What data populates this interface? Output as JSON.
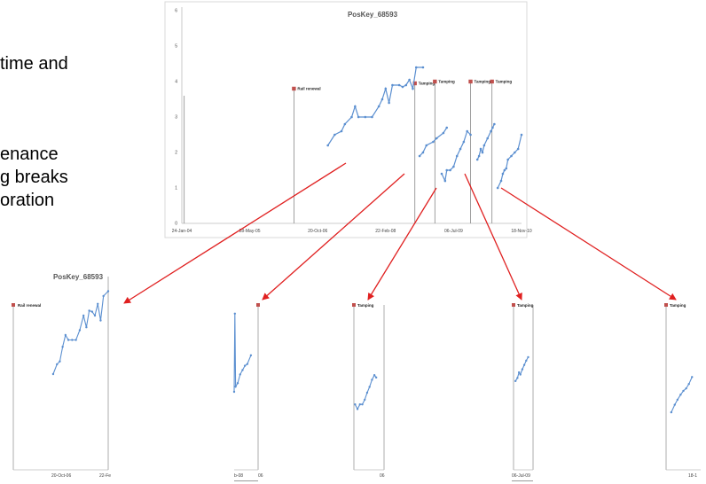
{
  "slide_text": [
    {
      "text": "time and",
      "x": 0,
      "y": 0
    },
    {
      "text": "enance"
    },
    {
      "text": "g breaks"
    },
    {
      "text": "oration"
    }
  ],
  "colors": {
    "series": "#5b8fd0",
    "marker": "#c0504d",
    "arrow": "#e02020",
    "event_line": "#888888"
  },
  "chart_data": [
    {
      "type": "line",
      "title": "PosKey_68593",
      "ylim": [
        0,
        6
      ],
      "y_ticks": [
        "0",
        "1",
        "2",
        "3",
        "4",
        "5",
        "6"
      ],
      "x_ticks": [
        "24-Jan-04",
        "28-May-05",
        "20-Oct-06",
        "22-Feb-08",
        "06-Jul-09",
        "18-Nov-10"
      ],
      "grid": false,
      "events": [
        {
          "label": "",
          "x": 0.007,
          "y": 3.6,
          "marker": false
        },
        {
          "label": "Rail renewal",
          "x": 0.33,
          "y": 3.8
        },
        {
          "label": "Tamping",
          "x": 0.686,
          "y": 3.95
        },
        {
          "label": "Tamping",
          "x": 0.745,
          "y": 4.0
        },
        {
          "label": "Tamping",
          "x": 0.85,
          "y": 4.0
        },
        {
          "label": "Tamping",
          "x": 0.913,
          "y": 4.0
        }
      ],
      "series": [
        {
          "values": [
            [
              0.43,
              2.2
            ],
            [
              0.45,
              2.5
            ],
            [
              0.47,
              2.6
            ],
            [
              0.48,
              2.8
            ],
            [
              0.5,
              3.0
            ],
            [
              0.51,
              3.3
            ],
            [
              0.52,
              3.0
            ],
            [
              0.54,
              3.0
            ],
            [
              0.56,
              3.0
            ],
            [
              0.58,
              3.3
            ],
            [
              0.59,
              3.5
            ],
            [
              0.6,
              3.8
            ],
            [
              0.61,
              3.4
            ],
            [
              0.62,
              3.9
            ],
            [
              0.64,
              3.9
            ],
            [
              0.65,
              3.85
            ],
            [
              0.66,
              3.9
            ],
            [
              0.67,
              4.05
            ],
            [
              0.68,
              3.8
            ],
            [
              0.69,
              4.4
            ],
            [
              0.71,
              4.4
            ]
          ]
        },
        {
          "values": [
            [
              0.7,
              1.9
            ],
            [
              0.71,
              2.0
            ],
            [
              0.72,
              2.2
            ],
            [
              0.74,
              2.3
            ],
            [
              0.75,
              2.4
            ],
            [
              0.77,
              2.55
            ],
            [
              0.78,
              2.7
            ]
          ]
        },
        {
          "values": [
            [
              0.765,
              1.4
            ],
            [
              0.775,
              1.2
            ],
            [
              0.78,
              1.5
            ],
            [
              0.79,
              1.5
            ],
            [
              0.8,
              1.6
            ],
            [
              0.81,
              1.9
            ],
            [
              0.82,
              2.1
            ],
            [
              0.83,
              2.3
            ],
            [
              0.84,
              2.6
            ],
            [
              0.85,
              2.5
            ]
          ]
        },
        {
          "values": [
            [
              0.87,
              1.8
            ],
            [
              0.875,
              1.9
            ],
            [
              0.88,
              2.1
            ],
            [
              0.885,
              2.0
            ],
            [
              0.89,
              2.2
            ],
            [
              0.9,
              2.4
            ],
            [
              0.91,
              2.6
            ],
            [
              0.915,
              2.7
            ],
            [
              0.92,
              2.8
            ]
          ]
        },
        {
          "values": [
            [
              0.93,
              1.0
            ],
            [
              0.94,
              1.2
            ],
            [
              0.945,
              1.4
            ],
            [
              0.95,
              1.5
            ],
            [
              0.955,
              1.55
            ],
            [
              0.96,
              1.8
            ],
            [
              0.97,
              1.9
            ],
            [
              0.98,
              2.0
            ],
            [
              0.99,
              2.1
            ],
            [
              1.0,
              2.5
            ]
          ]
        }
      ]
    },
    {
      "type": "line",
      "title": "PosKey_68593",
      "x_ticks": [
        "20-Oct-06",
        "22-Fe"
      ],
      "events": [
        {
          "label": "Rail renewal",
          "x": 0.0,
          "y": 0.0
        }
      ],
      "series": [
        {
          "values": [
            [
              0.42,
              0.0
            ],
            [
              0.46,
              0.1
            ],
            [
              0.49,
              0.13
            ],
            [
              0.52,
              0.28
            ],
            [
              0.55,
              0.4
            ],
            [
              0.58,
              0.35
            ],
            [
              0.62,
              0.35
            ],
            [
              0.66,
              0.35
            ],
            [
              0.7,
              0.45
            ],
            [
              0.74,
              0.6
            ],
            [
              0.77,
              0.48
            ],
            [
              0.8,
              0.65
            ],
            [
              0.83,
              0.64
            ],
            [
              0.86,
              0.6
            ],
            [
              0.89,
              0.72
            ],
            [
              0.92,
              0.55
            ],
            [
              0.95,
              0.8
            ],
            [
              1.0,
              0.85
            ]
          ]
        }
      ]
    },
    {
      "type": "line",
      "x_ticks": [
        "b-08",
        "06"
      ],
      "events": [
        {
          "label": "",
          "x": 1.0,
          "y": 0.0
        }
      ],
      "series": [
        {
          "values": [
            [
              0.0,
              0.0
            ],
            [
              0.03,
              0.9
            ],
            [
              0.06,
              0.06
            ],
            [
              0.15,
              0.1
            ],
            [
              0.25,
              0.2
            ],
            [
              0.35,
              0.25
            ],
            [
              0.45,
              0.3
            ],
            [
              0.55,
              0.32
            ],
            [
              0.7,
              0.42
            ]
          ]
        }
      ]
    },
    {
      "type": "line",
      "x_ticks": [
        "06"
      ],
      "events": [
        {
          "label": "Tamping",
          "x": 0.0,
          "y": 0.0
        }
      ],
      "series": [
        {
          "values": [
            [
              0.04,
              0.3
            ],
            [
              0.12,
              0.22
            ],
            [
              0.2,
              0.3
            ],
            [
              0.28,
              0.3
            ],
            [
              0.36,
              0.38
            ],
            [
              0.44,
              0.5
            ],
            [
              0.52,
              0.6
            ],
            [
              0.6,
              0.72
            ],
            [
              0.68,
              0.8
            ],
            [
              0.74,
              0.76
            ]
          ]
        }
      ]
    },
    {
      "type": "line",
      "x_ticks": [
        "06-Jul-09"
      ],
      "events": [
        {
          "label": "Tamping",
          "x": 0.0,
          "y": 0.0
        }
      ],
      "series": [
        {
          "values": [
            [
              0.1,
              0.35
            ],
            [
              0.2,
              0.42
            ],
            [
              0.28,
              0.55
            ],
            [
              0.35,
              0.5
            ],
            [
              0.45,
              0.62
            ],
            [
              0.55,
              0.72
            ],
            [
              0.65,
              0.82
            ],
            [
              0.75,
              0.9
            ]
          ]
        }
      ]
    },
    {
      "type": "line",
      "x_ticks": [
        "18-1"
      ],
      "events": [
        {
          "label": "Tamping",
          "x": 0.0,
          "y": 0.0
        }
      ],
      "series": [
        {
          "values": [
            [
              0.15,
              0.28
            ],
            [
              0.25,
              0.4
            ],
            [
              0.33,
              0.48
            ],
            [
              0.42,
              0.56
            ],
            [
              0.5,
              0.62
            ],
            [
              0.58,
              0.66
            ],
            [
              0.66,
              0.73
            ],
            [
              0.75,
              0.84
            ]
          ]
        }
      ]
    }
  ]
}
